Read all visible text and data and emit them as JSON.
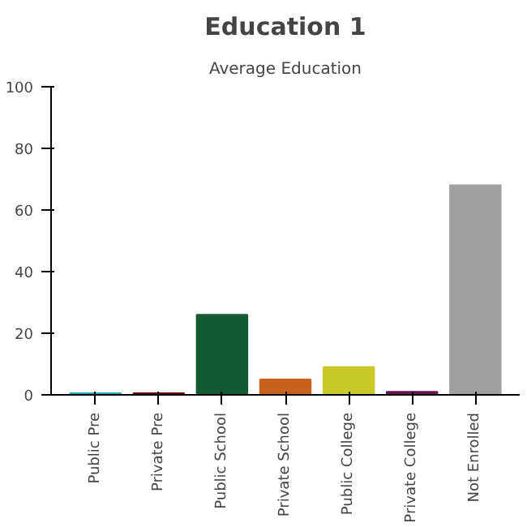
{
  "chart_data": {
    "type": "bar",
    "title": "Education 1",
    "subtitle": "Average Education",
    "categories": [
      "Public Pre",
      "Private Pre",
      "Public School",
      "Private School",
      "Public College",
      "Private College",
      "Not Enrolled"
    ],
    "values": [
      0.5,
      0.5,
      26,
      5,
      9,
      1,
      68
    ],
    "colors": [
      "#2aa8c0",
      "#5a0a0a",
      "#145a32",
      "#c8601e",
      "#c8c828",
      "#6e1450",
      "#a0a0a0"
    ],
    "ylim": [
      0,
      100
    ],
    "yticks": [
      0,
      20,
      40,
      60,
      80,
      100
    ],
    "grid": false
  }
}
